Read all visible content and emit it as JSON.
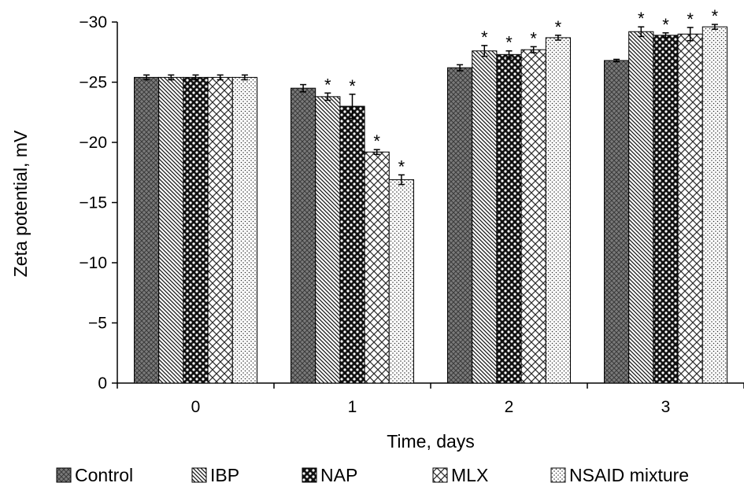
{
  "chart_data": {
    "type": "bar",
    "title": "",
    "xlabel": "Time, days",
    "ylabel": "Zeta potential, mV",
    "categories": [
      "0",
      "1",
      "2",
      "3"
    ],
    "y_tick_labels": [
      "0",
      "−5",
      "−10",
      "−15",
      "−20",
      "−25",
      "−30"
    ],
    "y_tick_values": [
      0,
      5,
      10,
      15,
      20,
      25,
      30
    ],
    "ylim": [
      0,
      30
    ],
    "y_axis_inverted_sign": true,
    "grid": false,
    "legend_position": "bottom",
    "significance_marker": "*",
    "series": [
      {
        "name": "Control",
        "pattern": "crosshatch-gray",
        "values": [
          25.4,
          24.5,
          26.2,
          26.8
        ],
        "errors": [
          0.2,
          0.3,
          0.25,
          0.1
        ],
        "significant": [
          false,
          false,
          false,
          false
        ]
      },
      {
        "name": "IBP",
        "pattern": "diagonal-lines",
        "values": [
          25.4,
          23.8,
          27.6,
          29.2
        ],
        "errors": [
          0.2,
          0.3,
          0.45,
          0.4
        ],
        "significant": [
          false,
          true,
          true,
          true
        ]
      },
      {
        "name": "NAP",
        "pattern": "dots-checker",
        "values": [
          25.4,
          23.0,
          27.3,
          28.9
        ],
        "errors": [
          0.2,
          1.0,
          0.3,
          0.2
        ],
        "significant": [
          false,
          true,
          true,
          true
        ]
      },
      {
        "name": "MLX",
        "pattern": "diamond-lattice",
        "values": [
          25.4,
          19.2,
          27.7,
          29.0
        ],
        "errors": [
          0.2,
          0.2,
          0.25,
          0.55
        ],
        "significant": [
          false,
          true,
          true,
          true
        ]
      },
      {
        "name": "NSAID mixture",
        "pattern": "fine-dots",
        "values": [
          25.4,
          16.9,
          28.7,
          29.6
        ],
        "errors": [
          0.2,
          0.4,
          0.2,
          0.2
        ],
        "significant": [
          false,
          true,
          true,
          true
        ]
      }
    ]
  }
}
